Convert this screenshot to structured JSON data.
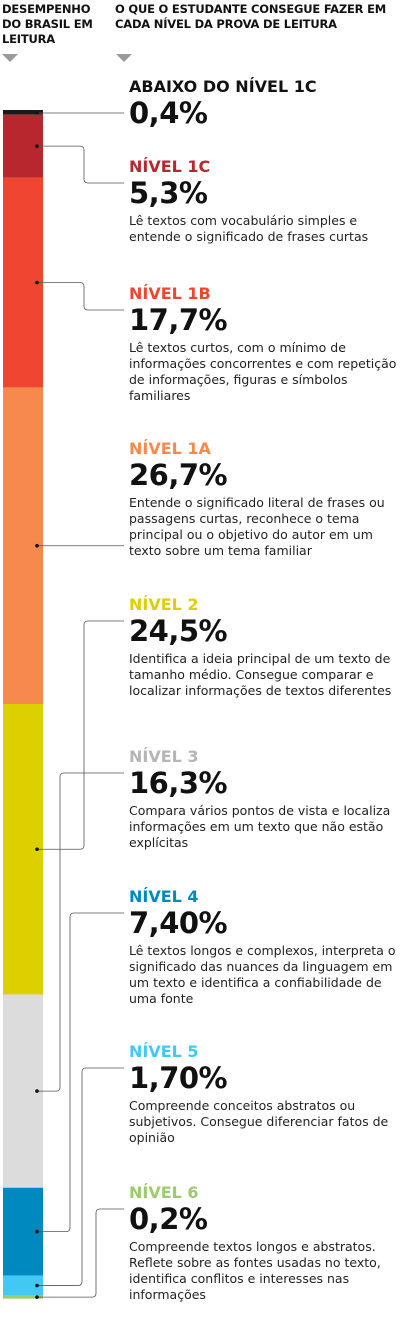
{
  "header": {
    "left": "DESEMPENHO DO BRASIL EM LEITURA",
    "right": "O QUE O ESTUDANTE CONSEGUE FAZER EM CADA NÍVEL DA PROVA DE LEITURA"
  },
  "chart_data": {
    "type": "bar",
    "orientation": "vertical-stacked",
    "series": [
      {
        "name": "ABAIXO DO NÍVEL 1C",
        "value": 0.4,
        "label": "0,4%",
        "color": "#1a1a1a",
        "description": ""
      },
      {
        "name": "NÍVEL 1C",
        "value": 5.3,
        "label": "5,3%",
        "color": "#b8262e",
        "description": "Lê textos com vocabulário simples e entende o significado de frases curtas"
      },
      {
        "name": "NÍVEL 1B",
        "value": 17.7,
        "label": "17,7%",
        "color": "#f04530",
        "description": "Lê textos curtos, com o mínimo de informações concorrentes e com repetição de informações, figuras e símbolos familiares"
      },
      {
        "name": "NÍVEL 1A",
        "value": 26.7,
        "label": "26,7%",
        "color": "#f58a4c",
        "description": "Entende o significado literal de frases ou passagens curtas, reconhece o tema principal ou o objetivo do autor em um texto sobre um tema familiar"
      },
      {
        "name": "NÍVEL 2",
        "value": 24.5,
        "label": "24,5%",
        "color": "#dcd000",
        "description": "Identifica a ideia principal de um texto de tamanho médio. Consegue comparar e localizar informações de textos diferentes"
      },
      {
        "name": "NÍVEL 3",
        "value": 16.3,
        "label": "16,3%",
        "color": "#dcdcdc",
        "description": "Compara vários pontos de vista e localiza informações em um texto que não estão explícitas"
      },
      {
        "name": "NÍVEL 4",
        "value": 7.4,
        "label": "7,40%",
        "color": "#0089bf",
        "description": "Lê textos longos e complexos, interpreta o significado das nuances da linguagem em um texto e identifica a confiabilidade de uma fonte"
      },
      {
        "name": "NÍVEL 5",
        "value": 1.7,
        "label": "1,70%",
        "color": "#43c8f5",
        "description": "Compreende conceitos abstratos ou subjetivos. Consegue diferenciar fatos de opinião"
      },
      {
        "name": "NÍVEL 6",
        "value": 0.2,
        "label": "0,2%",
        "color": "#9ccb6a",
        "description": "Compreende textos longos e abstratos. Reflete sobre as fontes usadas no texto, identifica conflitos e interesses nas informações"
      }
    ],
    "name_colors": [
      "#111111",
      "#b8262e",
      "#f04530",
      "#f58a4c",
      "#dcd000",
      "#b5b5b5",
      "#0089bf",
      "#43c8f5",
      "#9ccb6a"
    ]
  }
}
